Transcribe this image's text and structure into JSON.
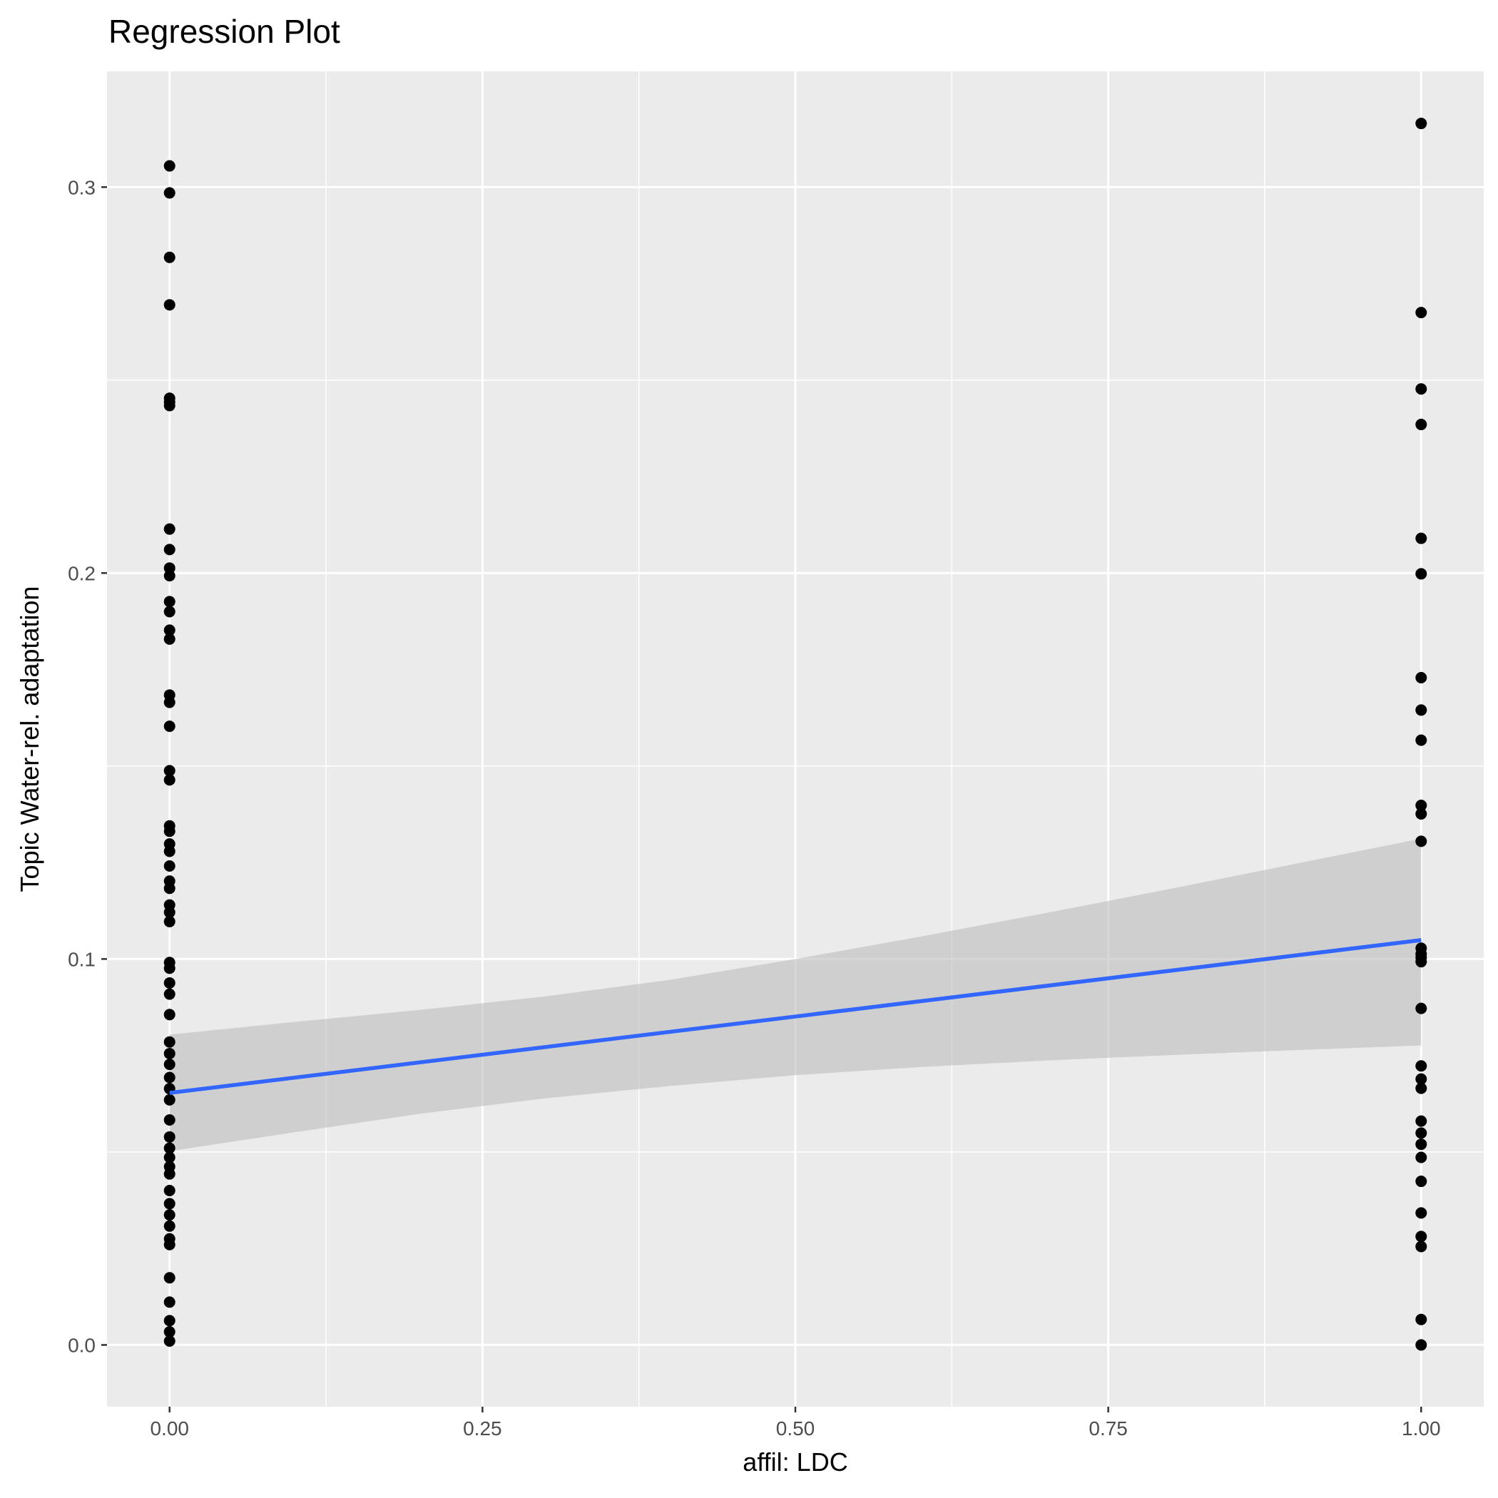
{
  "chart_data": {
    "type": "scatter",
    "title": "Regression Plot",
    "xlabel": "affil: LDC",
    "ylabel": "Topic Water-rel. adaptation",
    "xlim": [
      -0.05,
      1.05
    ],
    "ylim": [
      -0.016,
      0.33
    ],
    "x_ticks": [
      0.0,
      0.25,
      0.5,
      0.75,
      1.0
    ],
    "x_tick_labels": [
      "0.00",
      "0.25",
      "0.50",
      "0.75",
      "1.00"
    ],
    "y_ticks": [
      0.0,
      0.1,
      0.2,
      0.3
    ],
    "y_tick_labels": [
      "0.0",
      "0.1",
      "0.2",
      "0.3"
    ],
    "grid": true,
    "series": [
      {
        "type": "scatter",
        "color": "#000000",
        "points": [
          [
            0,
            0.3055
          ],
          [
            0,
            0.2985
          ],
          [
            0,
            0.2818
          ],
          [
            0,
            0.2695
          ],
          [
            0,
            0.2453
          ],
          [
            0,
            0.2443
          ],
          [
            0,
            0.2434
          ],
          [
            0,
            0.2114
          ],
          [
            0,
            0.2061
          ],
          [
            0,
            0.2013
          ],
          [
            0,
            0.1993
          ],
          [
            0,
            0.1926
          ],
          [
            0,
            0.19
          ],
          [
            0,
            0.1852
          ],
          [
            0,
            0.1829
          ],
          [
            0,
            0.1684
          ],
          [
            0,
            0.1665
          ],
          [
            0,
            0.1603
          ],
          [
            0,
            0.1488
          ],
          [
            0,
            0.1464
          ],
          [
            0,
            0.1345
          ],
          [
            0,
            0.1331
          ],
          [
            0,
            0.1298
          ],
          [
            0,
            0.1279
          ],
          [
            0,
            0.1241
          ],
          [
            0,
            0.1202
          ],
          [
            0,
            0.1183
          ],
          [
            0,
            0.114
          ],
          [
            0,
            0.1121
          ],
          [
            0,
            0.1097
          ],
          [
            0,
            0.0991
          ],
          [
            0,
            0.0976
          ],
          [
            0,
            0.0938
          ],
          [
            0,
            0.0909
          ],
          [
            0,
            0.0856
          ],
          [
            0,
            0.0785
          ],
          [
            0,
            0.0755
          ],
          [
            0,
            0.0727
          ],
          [
            0,
            0.0693
          ],
          [
            0,
            0.0664
          ],
          [
            0,
            0.0635
          ],
          [
            0,
            0.0583
          ],
          [
            0,
            0.0539
          ],
          [
            0,
            0.051
          ],
          [
            0,
            0.0486
          ],
          [
            0,
            0.0462
          ],
          [
            0,
            0.0443
          ],
          [
            0,
            0.04
          ],
          [
            0,
            0.0366
          ],
          [
            0,
            0.0337
          ],
          [
            0,
            0.0308
          ],
          [
            0,
            0.0275
          ],
          [
            0,
            0.026
          ],
          [
            0,
            0.0174
          ],
          [
            0,
            0.0111
          ],
          [
            0,
            0.0063
          ],
          [
            0,
            0.0034
          ],
          [
            0,
            0.001
          ],
          [
            1,
            0.3165
          ],
          [
            1,
            0.2675
          ],
          [
            1,
            0.2477
          ],
          [
            1,
            0.2385
          ],
          [
            1,
            0.209
          ],
          [
            1,
            0.1998
          ],
          [
            1,
            0.1729
          ],
          [
            1,
            0.1645
          ],
          [
            1,
            0.1567
          ],
          [
            1,
            0.1398
          ],
          [
            1,
            0.1376
          ],
          [
            1,
            0.1305
          ],
          [
            1,
            0.1028
          ],
          [
            1,
            0.1013
          ],
          [
            1,
            0.1004
          ],
          [
            1,
            0.0993
          ],
          [
            1,
            0.0872
          ],
          [
            1,
            0.0723
          ],
          [
            1,
            0.0689
          ],
          [
            1,
            0.0665
          ],
          [
            1,
            0.058
          ],
          [
            1,
            0.0549
          ],
          [
            1,
            0.052
          ],
          [
            1,
            0.0486
          ],
          [
            1,
            0.0424
          ],
          [
            1,
            0.0342
          ],
          [
            1,
            0.0281
          ],
          [
            1,
            0.0255
          ],
          [
            1,
            0.0066
          ],
          [
            1,
            0.0
          ]
        ]
      },
      {
        "type": "line",
        "color": "#3366FF",
        "points": [
          [
            0,
            0.0653
          ],
          [
            1,
            0.1049
          ]
        ]
      },
      {
        "type": "area",
        "color": "#bdbdbd",
        "x": [
          0,
          0.1,
          0.2,
          0.3,
          0.4,
          0.5,
          0.6,
          0.7,
          0.8,
          0.9,
          1.0
        ],
        "upper": [
          0.0804,
          0.0837,
          0.0868,
          0.0903,
          0.0946,
          0.1,
          0.1058,
          0.1119,
          0.1182,
          0.1247,
          0.1312
        ],
        "lower": [
          0.0502,
          0.0551,
          0.0599,
          0.0639,
          0.0671,
          0.0699,
          0.072,
          0.0737,
          0.0751,
          0.0764,
          0.0776
        ]
      }
    ]
  }
}
